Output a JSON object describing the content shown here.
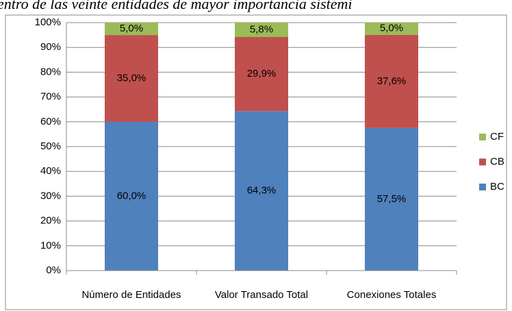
{
  "chart_data": {
    "type": "stacked_bar",
    "title": "entro de las veinte entidades de mayor importancia sistémi",
    "categories": [
      "Número de Entidades",
      "Valor Transado Total",
      "Conexiones Totales"
    ],
    "series": [
      {
        "name": "BC",
        "color": "#4f81bd",
        "values": [
          60.0,
          64.3,
          57.5
        ],
        "value_labels": [
          "60,0%",
          "64,3%",
          "57,5%"
        ]
      },
      {
        "name": "CB",
        "color": "#c0504d",
        "values": [
          35.0,
          29.9,
          37.6
        ],
        "value_labels": [
          "35,0%",
          "29,9%",
          "37,6%"
        ]
      },
      {
        "name": "CF",
        "color": "#9bbb59",
        "values": [
          5.0,
          5.8,
          5.0
        ],
        "value_labels": [
          "5,0%",
          "5,8%",
          "5,0%"
        ]
      }
    ],
    "ylim": [
      0,
      100
    ],
    "yticks": [
      {
        "value": 0,
        "label": "0%"
      },
      {
        "value": 10,
        "label": "10%"
      },
      {
        "value": 20,
        "label": "20%"
      },
      {
        "value": 30,
        "label": "30%"
      },
      {
        "value": 40,
        "label": "40%"
      },
      {
        "value": 50,
        "label": "50%"
      },
      {
        "value": 60,
        "label": "60%"
      },
      {
        "value": 70,
        "label": "70%"
      },
      {
        "value": 80,
        "label": "80%"
      },
      {
        "value": 90,
        "label": "90%"
      },
      {
        "value": 100,
        "label": "100%"
      }
    ],
    "grid": true,
    "legend": "right"
  }
}
